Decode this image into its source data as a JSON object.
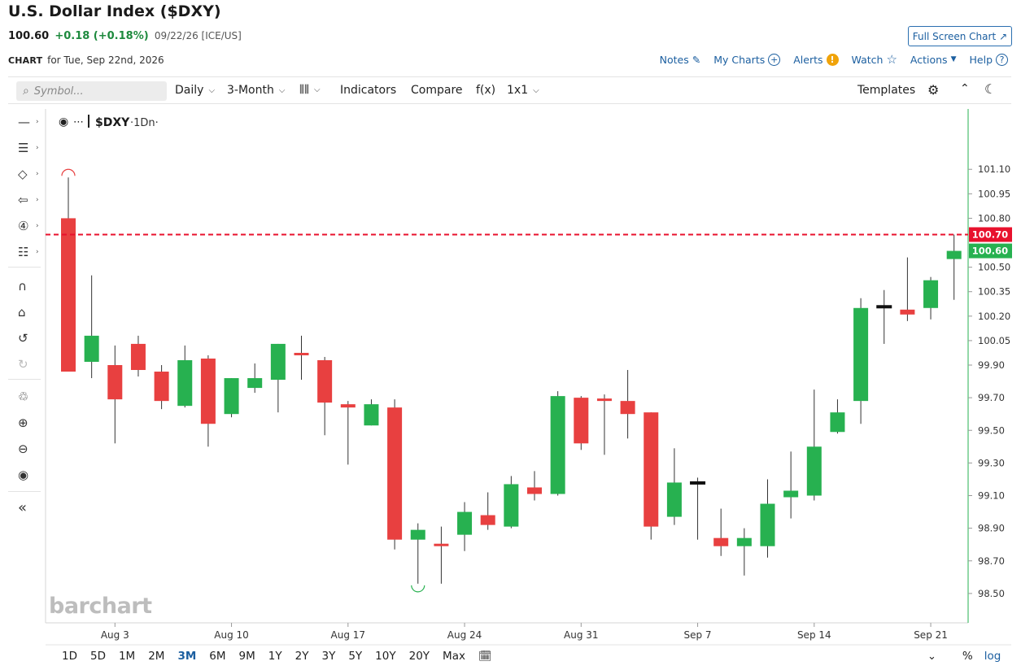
{
  "header": {
    "title": "U.S. Dollar Index ($DXY)",
    "last": "100.60",
    "change": "+0.18 (+0.18%)",
    "meta": "09/22/26 [ICE/US]",
    "fullscreen_label": "Full Screen Chart",
    "chart_label": "CHART",
    "chart_date": "for Tue, Sep 22nd, 2026"
  },
  "links": {
    "notes": "Notes",
    "my_charts": "My Charts",
    "alerts": "Alerts",
    "watch": "Watch",
    "actions": "Actions",
    "help": "Help"
  },
  "toolbar": {
    "symbol_placeholder": "Symbol...",
    "daily": "Daily",
    "range": "3-Month",
    "indicators": "Indicators",
    "compare": "Compare",
    "fx": "f(x)",
    "layout": "1x1",
    "templates": "Templates"
  },
  "chart_legend": {
    "symbol": "$DXY",
    "interval": "·1Dn·"
  },
  "range_buttons": [
    "1D",
    "5D",
    "1M",
    "2M",
    "3M",
    "6M",
    "9M",
    "1Y",
    "2Y",
    "3Y",
    "5Y",
    "10Y",
    "20Y",
    "Max"
  ],
  "active_range": "3M",
  "bottom": {
    "percent": "%",
    "log": "log"
  },
  "watermark": "barchart",
  "colors": {
    "up": "#27b150",
    "down": "#e84040",
    "accent": "#1c5fa0"
  },
  "chart_data": {
    "type": "candlestick",
    "title": "",
    "y_ticks": [
      101.1,
      100.95,
      100.8,
      100.5,
      100.35,
      100.2,
      100.05,
      99.9,
      99.7,
      99.5,
      99.3,
      99.1,
      98.9,
      98.7,
      98.5
    ],
    "y_tick_labels": [
      "101.10",
      "100.95",
      "100.80",
      "100.50",
      "100.35",
      "100.20",
      "100.05",
      "99.90",
      "99.70",
      "99.50",
      "99.30",
      "99.10",
      "98.90",
      "98.70",
      "98.50"
    ],
    "x_ticks": [
      {
        "index": 2,
        "label": "Aug 3"
      },
      {
        "index": 7,
        "label": "Aug 10"
      },
      {
        "index": 12,
        "label": "Aug 17"
      },
      {
        "index": 17,
        "label": "Aug 24"
      },
      {
        "index": 22,
        "label": "Aug 31"
      },
      {
        "index": 27,
        "label": "Sep 7"
      },
      {
        "index": 32,
        "label": "Sep 14"
      },
      {
        "index": 37,
        "label": "Sep 21"
      }
    ],
    "reference_line": {
      "value": 100.7,
      "label": "100.70",
      "color": "#e8112d"
    },
    "last_price": {
      "value": 100.6,
      "label": "100.60"
    },
    "ylim": [
      98.32,
      101.47
    ],
    "candles": [
      {
        "o": 100.8,
        "h": 101.05,
        "l": 99.86,
        "c": 99.86
      },
      {
        "o": 99.92,
        "h": 100.45,
        "l": 99.82,
        "c": 100.08
      },
      {
        "o": 99.9,
        "h": 100.02,
        "l": 99.42,
        "c": 99.69
      },
      {
        "o": 100.03,
        "h": 100.08,
        "l": 99.83,
        "c": 99.87
      },
      {
        "o": 99.86,
        "h": 99.9,
        "l": 99.63,
        "c": 99.68
      },
      {
        "o": 99.65,
        "h": 100.02,
        "l": 99.64,
        "c": 99.93
      },
      {
        "o": 99.94,
        "h": 99.96,
        "l": 99.4,
        "c": 99.54
      },
      {
        "o": 99.6,
        "h": 99.82,
        "l": 99.58,
        "c": 99.82
      },
      {
        "o": 99.76,
        "h": 99.91,
        "l": 99.73,
        "c": 99.82
      },
      {
        "o": 99.81,
        "h": 100.03,
        "l": 99.61,
        "c": 100.03
      },
      {
        "o": 99.97,
        "h": 100.08,
        "l": 99.81,
        "c": 99.96
      },
      {
        "o": 99.93,
        "h": 99.95,
        "l": 99.47,
        "c": 99.67
      },
      {
        "o": 99.66,
        "h": 99.68,
        "l": 99.29,
        "c": 99.64
      },
      {
        "o": 99.53,
        "h": 99.69,
        "l": 99.53,
        "c": 99.66
      },
      {
        "o": 99.64,
        "h": 99.69,
        "l": 98.77,
        "c": 98.83
      },
      {
        "o": 98.83,
        "h": 98.93,
        "l": 98.56,
        "c": 98.89
      },
      {
        "o": 98.8,
        "h": 98.91,
        "l": 98.56,
        "c": 98.79
      },
      {
        "o": 98.86,
        "h": 99.06,
        "l": 98.76,
        "c": 99.0
      },
      {
        "o": 98.98,
        "h": 99.12,
        "l": 98.89,
        "c": 98.92
      },
      {
        "o": 98.91,
        "h": 99.22,
        "l": 98.9,
        "c": 99.17
      },
      {
        "o": 99.15,
        "h": 99.25,
        "l": 99.07,
        "c": 99.11
      },
      {
        "o": 99.11,
        "h": 99.74,
        "l": 99.1,
        "c": 99.71
      },
      {
        "o": 99.7,
        "h": 99.71,
        "l": 99.38,
        "c": 99.42
      },
      {
        "o": 99.69,
        "h": 99.72,
        "l": 99.35,
        "c": 99.68
      },
      {
        "o": 99.68,
        "h": 99.87,
        "l": 99.45,
        "c": 99.6
      },
      {
        "o": 99.61,
        "h": 99.61,
        "l": 98.83,
        "c": 98.91
      },
      {
        "o": 98.97,
        "h": 99.39,
        "l": 98.92,
        "c": 99.18
      },
      {
        "o": 99.18,
        "h": 99.21,
        "l": 98.83,
        "c": 99.18
      },
      {
        "o": 98.84,
        "h": 99.02,
        "l": 98.73,
        "c": 98.79
      },
      {
        "o": 98.79,
        "h": 98.9,
        "l": 98.61,
        "c": 98.84
      },
      {
        "o": 98.79,
        "h": 99.2,
        "l": 98.72,
        "c": 99.05
      },
      {
        "o": 99.09,
        "h": 99.37,
        "l": 98.96,
        "c": 99.13
      },
      {
        "o": 99.1,
        "h": 99.75,
        "l": 99.07,
        "c": 99.4
      },
      {
        "o": 99.49,
        "h": 99.69,
        "l": 99.48,
        "c": 99.61
      },
      {
        "o": 99.68,
        "h": 100.31,
        "l": 99.54,
        "c": 100.25
      },
      {
        "o": 100.26,
        "h": 100.36,
        "l": 100.03,
        "c": 100.26
      },
      {
        "o": 100.24,
        "h": 100.56,
        "l": 100.17,
        "c": 100.21
      },
      {
        "o": 100.25,
        "h": 100.44,
        "l": 100.18,
        "c": 100.42
      },
      {
        "o": 100.55,
        "h": 100.7,
        "l": 100.3,
        "c": 100.6
      }
    ]
  }
}
